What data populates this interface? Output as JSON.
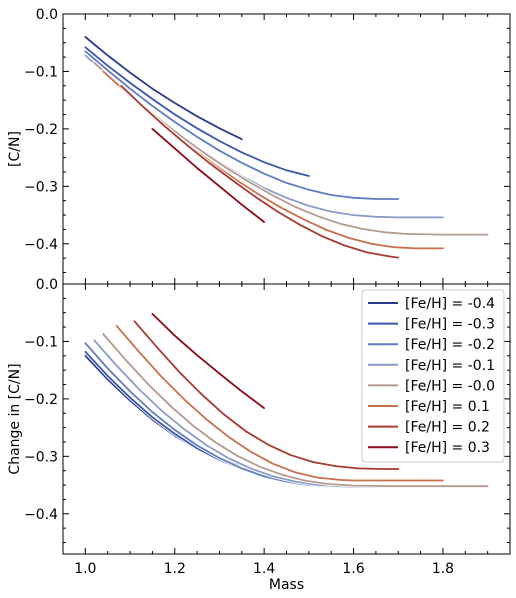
{
  "chart_data": [
    {
      "type": "line",
      "panel": "top",
      "ylabel": "[C/N]",
      "xlabel": "",
      "xlim": [
        0.95,
        1.95
      ],
      "ylim": [
        -0.47,
        0.0
      ],
      "xticks": [
        "1.0",
        "1.2",
        "1.4",
        "1.6",
        "1.8"
      ],
      "yticks": [
        {
          "v": 0.0,
          "label": "0.0"
        },
        {
          "v": -0.1,
          "label": "−0.1"
        },
        {
          "v": -0.2,
          "label": "−0.2"
        },
        {
          "v": -0.3,
          "label": "−0.3"
        },
        {
          "v": -0.4,
          "label": "−0.4"
        }
      ],
      "series": [
        {
          "name": "[Fe/H] = -0.4",
          "color": "#2a3a8a",
          "points": [
            [
              1.0,
              -0.04
            ],
            [
              1.05,
              -0.072
            ],
            [
              1.1,
              -0.102
            ],
            [
              1.15,
              -0.13
            ],
            [
              1.2,
              -0.155
            ],
            [
              1.25,
              -0.178
            ],
            [
              1.3,
              -0.199
            ],
            [
              1.35,
              -0.218
            ]
          ]
        },
        {
          "name": "[Fe/H] = -0.3",
          "color": "#3a55b0",
          "points": [
            [
              1.0,
              -0.058
            ],
            [
              1.05,
              -0.09
            ],
            [
              1.1,
              -0.12
            ],
            [
              1.15,
              -0.148
            ],
            [
              1.2,
              -0.175
            ],
            [
              1.25,
              -0.199
            ],
            [
              1.3,
              -0.221
            ],
            [
              1.35,
              -0.241
            ],
            [
              1.4,
              -0.258
            ],
            [
              1.45,
              -0.272
            ],
            [
              1.5,
              -0.282
            ]
          ]
        },
        {
          "name": "[Fe/H] = -0.2",
          "color": "#5f7dc0",
          "points": [
            [
              1.0,
              -0.065
            ],
            [
              1.05,
              -0.098
            ],
            [
              1.1,
              -0.13
            ],
            [
              1.15,
              -0.16
            ],
            [
              1.2,
              -0.188
            ],
            [
              1.25,
              -0.214
            ],
            [
              1.3,
              -0.238
            ],
            [
              1.35,
              -0.259
            ],
            [
              1.4,
              -0.278
            ],
            [
              1.45,
              -0.294
            ],
            [
              1.5,
              -0.306
            ],
            [
              1.55,
              -0.315
            ],
            [
              1.6,
              -0.32
            ],
            [
              1.65,
              -0.322
            ],
            [
              1.7,
              -0.322
            ]
          ]
        },
        {
          "name": "[Fe/H] = -0.1",
          "color": "#8a9cc8",
          "points": [
            [
              1.0,
              -0.072
            ],
            [
              1.05,
              -0.108
            ],
            [
              1.1,
              -0.142
            ],
            [
              1.15,
              -0.174
            ],
            [
              1.2,
              -0.204
            ],
            [
              1.25,
              -0.232
            ],
            [
              1.3,
              -0.258
            ],
            [
              1.35,
              -0.282
            ],
            [
              1.4,
              -0.303
            ],
            [
              1.45,
              -0.32
            ],
            [
              1.5,
              -0.334
            ],
            [
              1.55,
              -0.344
            ],
            [
              1.6,
              -0.35
            ],
            [
              1.65,
              -0.353
            ],
            [
              1.7,
              -0.354
            ],
            [
              1.8,
              -0.354
            ]
          ]
        },
        {
          "name": "[Fe/H] = -0.0",
          "color": "#b49a8e",
          "points": [
            [
              1.02,
              -0.085
            ],
            [
              1.07,
              -0.12
            ],
            [
              1.12,
              -0.154
            ],
            [
              1.17,
              -0.186
            ],
            [
              1.22,
              -0.216
            ],
            [
              1.27,
              -0.244
            ],
            [
              1.32,
              -0.27
            ],
            [
              1.37,
              -0.294
            ],
            [
              1.42,
              -0.316
            ],
            [
              1.47,
              -0.336
            ],
            [
              1.52,
              -0.352
            ],
            [
              1.57,
              -0.365
            ],
            [
              1.62,
              -0.374
            ],
            [
              1.67,
              -0.38
            ],
            [
              1.72,
              -0.383
            ],
            [
              1.8,
              -0.384
            ],
            [
              1.9,
              -0.384
            ]
          ]
        },
        {
          "name": "[Fe/H] = 0.1",
          "color": "#c8704e",
          "points": [
            [
              1.04,
              -0.1
            ],
            [
              1.09,
              -0.135
            ],
            [
              1.14,
              -0.17
            ],
            [
              1.19,
              -0.203
            ],
            [
              1.24,
              -0.234
            ],
            [
              1.29,
              -0.263
            ],
            [
              1.34,
              -0.29
            ],
            [
              1.39,
              -0.315
            ],
            [
              1.44,
              -0.338
            ],
            [
              1.49,
              -0.358
            ],
            [
              1.54,
              -0.376
            ],
            [
              1.59,
              -0.39
            ],
            [
              1.64,
              -0.4
            ],
            [
              1.69,
              -0.406
            ],
            [
              1.74,
              -0.408
            ],
            [
              1.8,
              -0.408
            ]
          ]
        },
        {
          "name": "[Fe/H] = 0.2",
          "color": "#a83a32",
          "points": [
            [
              1.08,
              -0.125
            ],
            [
              1.13,
              -0.162
            ],
            [
              1.18,
              -0.197
            ],
            [
              1.23,
              -0.23
            ],
            [
              1.28,
              -0.261
            ],
            [
              1.33,
              -0.29
            ],
            [
              1.38,
              -0.318
            ],
            [
              1.43,
              -0.344
            ],
            [
              1.48,
              -0.367
            ],
            [
              1.53,
              -0.387
            ],
            [
              1.58,
              -0.403
            ],
            [
              1.63,
              -0.415
            ],
            [
              1.68,
              -0.422
            ],
            [
              1.7,
              -0.424
            ]
          ]
        },
        {
          "name": "[Fe/H] = 0.3",
          "color": "#8a0a1a",
          "points": [
            [
              1.15,
              -0.2
            ],
            [
              1.2,
              -0.234
            ],
            [
              1.25,
              -0.268
            ],
            [
              1.3,
              -0.3
            ],
            [
              1.35,
              -0.332
            ],
            [
              1.4,
              -0.362
            ]
          ]
        }
      ]
    },
    {
      "type": "line",
      "panel": "bottom",
      "ylabel": "Change in [C/N]",
      "xlabel": "Mass",
      "xlim": [
        0.95,
        1.95
      ],
      "ylim": [
        -0.47,
        0.0
      ],
      "xticks": [
        "1.0",
        "1.2",
        "1.4",
        "1.6",
        "1.8"
      ],
      "yticks": [
        {
          "v": 0.0,
          "label": "0.0"
        },
        {
          "v": -0.1,
          "label": "−0.1"
        },
        {
          "v": -0.2,
          "label": "−0.2"
        },
        {
          "v": -0.3,
          "label": "−0.3"
        },
        {
          "v": -0.4,
          "label": "−0.4"
        }
      ],
      "legend": "top-right",
      "series": [
        {
          "name": "[Fe/H] = -0.4",
          "color": "#2a3a8a",
          "points": [
            [
              1.0,
              -0.125
            ],
            [
              1.05,
              -0.166
            ],
            [
              1.1,
              -0.203
            ],
            [
              1.15,
              -0.236
            ],
            [
              1.2,
              -0.264
            ],
            [
              1.25,
              -0.287
            ],
            [
              1.3,
              -0.304
            ],
            [
              1.35,
              -0.315
            ]
          ]
        },
        {
          "name": "[Fe/H] = -0.3",
          "color": "#3a55b0",
          "points": [
            [
              1.0,
              -0.118
            ],
            [
              1.05,
              -0.16
            ],
            [
              1.1,
              -0.198
            ],
            [
              1.15,
              -0.232
            ],
            [
              1.2,
              -0.261
            ],
            [
              1.25,
              -0.286
            ],
            [
              1.3,
              -0.306
            ],
            [
              1.35,
              -0.322
            ],
            [
              1.4,
              -0.333
            ],
            [
              1.45,
              -0.34
            ],
            [
              1.5,
              -0.344
            ]
          ]
        },
        {
          "name": "[Fe/H] = -0.2",
          "color": "#5f7dc0",
          "points": [
            [
              1.0,
              -0.103
            ],
            [
              1.05,
              -0.147
            ],
            [
              1.1,
              -0.187
            ],
            [
              1.15,
              -0.223
            ],
            [
              1.2,
              -0.254
            ],
            [
              1.25,
              -0.281
            ],
            [
              1.3,
              -0.303
            ],
            [
              1.35,
              -0.321
            ],
            [
              1.4,
              -0.335
            ],
            [
              1.45,
              -0.344
            ],
            [
              1.5,
              -0.35
            ],
            [
              1.55,
              -0.352
            ],
            [
              1.6,
              -0.353
            ],
            [
              1.7,
              -0.353
            ]
          ]
        },
        {
          "name": "[Fe/H] = -0.1",
          "color": "#8a9cc8",
          "points": [
            [
              1.02,
              -0.098
            ],
            [
              1.07,
              -0.142
            ],
            [
              1.12,
              -0.183
            ],
            [
              1.17,
              -0.22
            ],
            [
              1.22,
              -0.252
            ],
            [
              1.27,
              -0.28
            ],
            [
              1.32,
              -0.303
            ],
            [
              1.37,
              -0.321
            ],
            [
              1.42,
              -0.335
            ],
            [
              1.47,
              -0.344
            ],
            [
              1.52,
              -0.35
            ],
            [
              1.57,
              -0.352
            ],
            [
              1.6,
              -0.353
            ],
            [
              1.8,
              -0.353
            ]
          ]
        },
        {
          "name": "[Fe/H] = -0.0",
          "color": "#b49a8e",
          "points": [
            [
              1.04,
              -0.087
            ],
            [
              1.09,
              -0.132
            ],
            [
              1.14,
              -0.174
            ],
            [
              1.19,
              -0.212
            ],
            [
              1.24,
              -0.246
            ],
            [
              1.29,
              -0.275
            ],
            [
              1.34,
              -0.299
            ],
            [
              1.39,
              -0.318
            ],
            [
              1.44,
              -0.332
            ],
            [
              1.49,
              -0.342
            ],
            [
              1.54,
              -0.348
            ],
            [
              1.6,
              -0.351
            ],
            [
              1.7,
              -0.352
            ],
            [
              1.9,
              -0.352
            ]
          ]
        },
        {
          "name": "[Fe/H] = 0.1",
          "color": "#c8704e",
          "points": [
            [
              1.07,
              -0.073
            ],
            [
              1.12,
              -0.118
            ],
            [
              1.17,
              -0.161
            ],
            [
              1.22,
              -0.2
            ],
            [
              1.27,
              -0.235
            ],
            [
              1.32,
              -0.266
            ],
            [
              1.37,
              -0.292
            ],
            [
              1.42,
              -0.313
            ],
            [
              1.47,
              -0.328
            ],
            [
              1.52,
              -0.337
            ],
            [
              1.57,
              -0.341
            ],
            [
              1.6,
              -0.342
            ],
            [
              1.8,
              -0.342
            ]
          ]
        },
        {
          "name": "[Fe/H] = 0.2",
          "color": "#a83a32",
          "points": [
            [
              1.11,
              -0.065
            ],
            [
              1.16,
              -0.11
            ],
            [
              1.21,
              -0.153
            ],
            [
              1.26,
              -0.192
            ],
            [
              1.31,
              -0.227
            ],
            [
              1.36,
              -0.257
            ],
            [
              1.41,
              -0.28
            ],
            [
              1.46,
              -0.298
            ],
            [
              1.51,
              -0.31
            ],
            [
              1.56,
              -0.317
            ],
            [
              1.61,
              -0.321
            ],
            [
              1.66,
              -0.322
            ],
            [
              1.7,
              -0.322
            ]
          ]
        },
        {
          "name": "[Fe/H] = 0.3",
          "color": "#8a0a1a",
          "points": [
            [
              1.15,
              -0.052
            ],
            [
              1.2,
              -0.09
            ],
            [
              1.25,
              -0.124
            ],
            [
              1.3,
              -0.156
            ],
            [
              1.35,
              -0.187
            ],
            [
              1.4,
              -0.216
            ]
          ]
        }
      ]
    }
  ]
}
